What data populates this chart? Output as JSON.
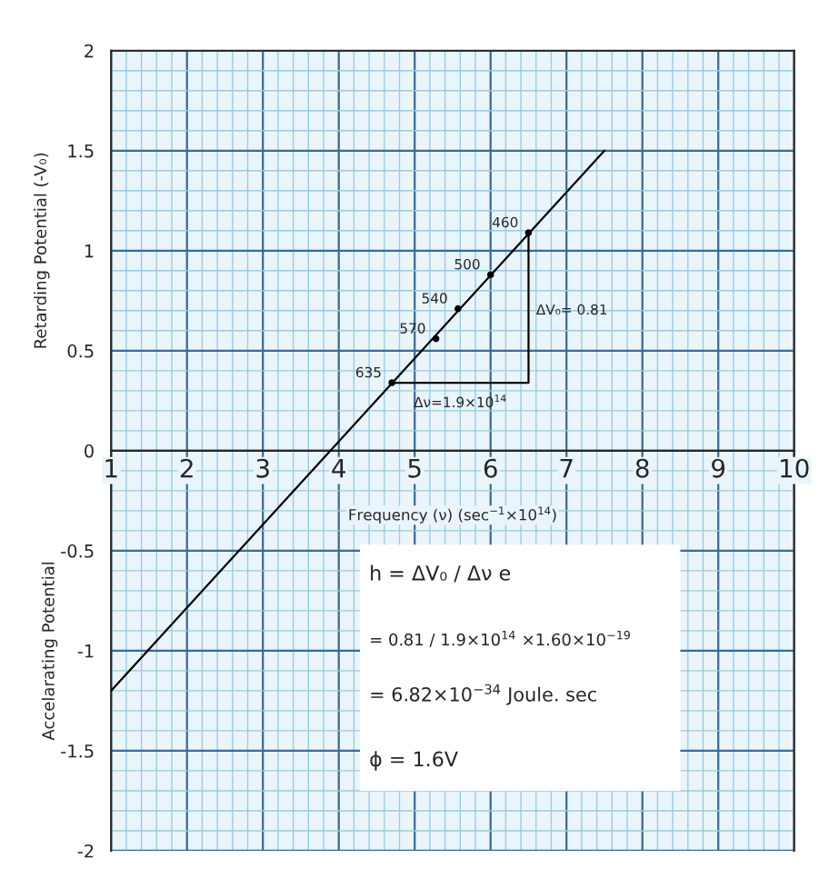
{
  "chart_data": {
    "type": "scatter",
    "xlabel": "Frequency (ν) (sec$^{−1}$×10$^{14}$)",
    "ylabel": "Retarding Potential (-V₀)",
    "xlim": [
      1,
      10
    ],
    "ylim": [
      -2,
      2
    ],
    "xticks": [
      1,
      2,
      3,
      4,
      5,
      6,
      7,
      8,
      9,
      10
    ],
    "yticks": [
      -2,
      -1.5,
      -1,
      -0.5,
      0,
      0.5,
      1,
      1.5,
      2
    ],
    "grid": true,
    "series": [
      {
        "type": "line",
        "color": "#000000",
        "x": [
          1,
          7.5
        ],
        "values": [
          -1.2,
          1.5
        ]
      },
      {
        "type": "line",
        "color": "#000000",
        "x": [
          4.7,
          6.5,
          6.5
        ],
        "values": [
          0.34,
          0.34,
          1.09
        ]
      },
      {
        "color": "#000000",
        "marker": "circle",
        "x": [
          4.7,
          5.28,
          5.57,
          6.0,
          6.5
        ],
        "values": [
          0.34,
          0.56,
          0.71,
          0.88,
          1.09
        ]
      }
    ],
    "annotations": [
      {
        "text": "635",
        "x": 4.7,
        "y": 0.34
      },
      {
        "text": "570",
        "x": 5.28,
        "y": 0.56
      },
      {
        "text": "540",
        "x": 5.57,
        "y": 0.71
      },
      {
        "text": "500",
        "x": 6.0,
        "y": 0.88
      },
      {
        "text": "460",
        "x": 6.5,
        "y": 1.09
      },
      {
        "text": "ΔV₀= 0.81",
        "x": 6.5,
        "y": 0.7
      },
      {
        "text": "Δν=1.9×10$^{14}$",
        "x": 5.6,
        "y": 0.34
      },
      "Accelarating Potential",
      "h = ΔV₀ / Δν e",
      "= 0.81 / 1.9×10$^{14}$ ×1.60×10$^{−19}$",
      "= 6.82×10$^{−34}$ Joule. sec",
      "ϕ = 1.6V"
    ]
  }
}
